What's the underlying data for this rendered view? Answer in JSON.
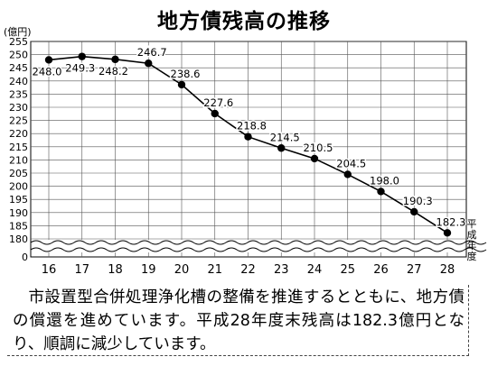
{
  "chart_data": {
    "type": "line",
    "title": "地方債残高の推移",
    "ylabel": "(億円)",
    "xlabel": "平成年度",
    "x": [
      "16",
      "17",
      "18",
      "19",
      "20",
      "21",
      "22",
      "23",
      "24",
      "25",
      "26",
      "27",
      "28"
    ],
    "values": [
      248.0,
      249.3,
      248.2,
      246.7,
      238.6,
      227.6,
      218.8,
      214.5,
      210.5,
      204.5,
      198.0,
      190.3,
      182.3
    ],
    "value_labels": [
      "248.0",
      "249.3",
      "248.2",
      "246.7",
      "238.6",
      "227.6",
      "218.8",
      "214.5",
      "210.5",
      "204.5",
      "198.0",
      "190.3",
      "182.3"
    ],
    "ylim": [
      180,
      255
    ],
    "yticks": [
      "255",
      "250",
      "245",
      "240",
      "235",
      "230",
      "225",
      "220",
      "215",
      "210",
      "205",
      "200",
      "195",
      "190",
      "185",
      "180"
    ],
    "y_zero_label": "0",
    "grid": true,
    "axis_break": true
  },
  "caption": {
    "text": "市設置型合併処理浄化槽の整備を推進するとともに、地方債の償還を進めています。平成28年度末残高は182.3億円となり、順調に減少しています。"
  }
}
